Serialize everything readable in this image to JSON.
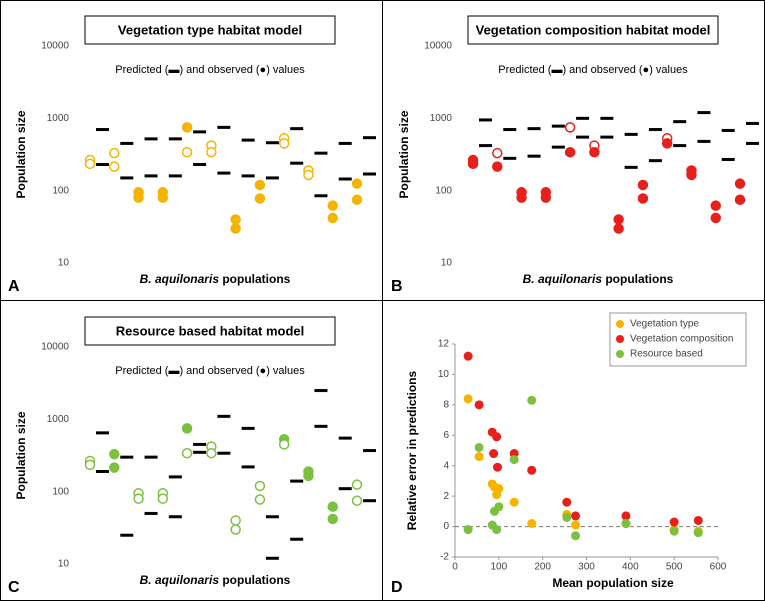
{
  "chart_data": [
    {
      "type": "strip",
      "panel": "A",
      "title": "Vegetation type habitat model",
      "annotation": "Predicted (▬) and observed (●) values",
      "ylabel": "Population size",
      "xlabel": [
        "B. aquilonaris",
        "populations"
      ],
      "log_scale": true,
      "ylim": [
        10,
        10000
      ],
      "yticks": [
        10,
        100,
        1000,
        10000
      ],
      "categories": [
        null,
        null,
        null,
        null,
        null,
        null,
        null,
        null,
        null,
        null,
        null,
        null
      ],
      "series": [
        {
          "marker": "dash",
          "color": "#000000",
          "values": [
            700,
            450,
            520,
            520,
            650,
            750,
            500,
            460,
            720,
            330,
            450,
            540
          ]
        },
        {
          "marker": "dash",
          "color": "#000000",
          "values": [
            230,
            150,
            160,
            160,
            230,
            175,
            160,
            150,
            240,
            85,
            145,
            170
          ]
        },
        {
          "marker": "circle",
          "color": "#f5b400",
          "values": [
            265,
            330,
            95,
            95,
            750,
            420,
            40,
            120,
            530,
            190,
            62,
            125
          ],
          "filled": [
            false,
            false,
            true,
            true,
            true,
            false,
            true,
            true,
            false,
            false,
            true,
            true
          ]
        },
        {
          "marker": "circle",
          "color": "#f5b400",
          "values": [
            235,
            215,
            80,
            80,
            340,
            340,
            30,
            78,
            450,
            165,
            42,
            75
          ],
          "filled": [
            false,
            false,
            true,
            true,
            false,
            false,
            true,
            true,
            false,
            false,
            true,
            true
          ]
        }
      ]
    },
    {
      "type": "strip",
      "panel": "B",
      "title": "Vegetation composition habitat model",
      "annotation": "Predicted (▬) and observed (●) values",
      "ylabel": "Population size",
      "xlabel": [
        "B. aquilonaris",
        "populations"
      ],
      "log_scale": true,
      "ylim": [
        10,
        10000
      ],
      "yticks": [
        10,
        100,
        1000,
        10000
      ],
      "categories": [
        null,
        null,
        null,
        null,
        null,
        null,
        null,
        null,
        null,
        null,
        null,
        null
      ],
      "series": [
        {
          "marker": "dash",
          "color": "#000000",
          "values": [
            950,
            700,
            720,
            780,
            1000,
            1000,
            600,
            700,
            900,
            1200,
            680,
            850
          ]
        },
        {
          "marker": "dash",
          "color": "#000000",
          "values": [
            420,
            280,
            300,
            400,
            550,
            550,
            210,
            260,
            420,
            480,
            270,
            450
          ]
        },
        {
          "marker": "circle",
          "color": "#e8201c",
          "values": [
            265,
            330,
            95,
            95,
            750,
            420,
            40,
            120,
            530,
            190,
            62,
            125
          ],
          "filled": [
            true,
            false,
            true,
            true,
            false,
            false,
            true,
            true,
            false,
            true,
            true,
            true
          ]
        },
        {
          "marker": "circle",
          "color": "#e8201c",
          "values": [
            235,
            215,
            80,
            80,
            340,
            340,
            30,
            78,
            450,
            165,
            42,
            75
          ],
          "filled": [
            true,
            true,
            true,
            true,
            true,
            true,
            true,
            true,
            true,
            true,
            true,
            true
          ]
        }
      ]
    },
    {
      "type": "strip",
      "panel": "C",
      "title": "Resource based habitat model",
      "annotation": "Predicted (▬) and observed (●) values",
      "ylabel": "Population size",
      "xlabel": [
        "B. aquilonaris",
        "populations"
      ],
      "log_scale": true,
      "ylim": [
        10,
        10000
      ],
      "yticks": [
        10,
        100,
        1000,
        10000
      ],
      "categories": [
        null,
        null,
        null,
        null,
        null,
        null,
        null,
        null,
        null,
        null,
        null,
        null
      ],
      "series": [
        {
          "marker": "dash",
          "color": "#000000",
          "values": [
            650,
            300,
            300,
            160,
            450,
            1100,
            750,
            45,
            140,
            2500,
            550,
            370
          ]
        },
        {
          "marker": "dash",
          "color": "#000000",
          "values": [
            190,
            25,
            50,
            45,
            350,
            340,
            220,
            12,
            22,
            800,
            110,
            75
          ]
        },
        {
          "marker": "circle",
          "color": "#7cc040",
          "values": [
            265,
            330,
            95,
            95,
            750,
            420,
            40,
            120,
            530,
            190,
            62,
            125
          ],
          "filled": [
            false,
            true,
            false,
            false,
            true,
            false,
            false,
            false,
            true,
            true,
            true,
            false
          ]
        },
        {
          "marker": "circle",
          "color": "#7cc040",
          "values": [
            235,
            215,
            80,
            80,
            340,
            340,
            30,
            78,
            450,
            165,
            42,
            75
          ],
          "filled": [
            false,
            true,
            false,
            false,
            false,
            false,
            false,
            false,
            false,
            true,
            true,
            false
          ]
        }
      ]
    },
    {
      "type": "scatter",
      "panel": "D",
      "ylabel": "Relative error in predictions",
      "xlabel": "Mean population size",
      "xlim": [
        0,
        600
      ],
      "xticks": [
        0,
        100,
        200,
        300,
        400,
        500,
        600
      ],
      "ylim": [
        -2,
        12
      ],
      "yticks": [
        -2,
        0,
        2,
        4,
        6,
        8,
        10,
        12
      ],
      "reference_line": 0,
      "legend": "top-right",
      "series": [
        {
          "name": "Vegetation type",
          "color": "#f5b400",
          "x": [
            30,
            55,
            85,
            90,
            95,
            100,
            135,
            175,
            255,
            275,
            390,
            500,
            555
          ],
          "values": [
            8.4,
            4.6,
            2.8,
            2.6,
            2.1,
            2.5,
            1.6,
            0.2,
            0.8,
            0.1,
            0.2,
            -0.2,
            -0.3
          ]
        },
        {
          "name": "Vegetation composition",
          "color": "#e8201c",
          "x": [
            30,
            55,
            85,
            95,
            88,
            97,
            135,
            175,
            255,
            275,
            390,
            500,
            555
          ],
          "values": [
            11.2,
            8.0,
            6.2,
            5.9,
            4.8,
            3.9,
            4.8,
            3.7,
            1.6,
            0.7,
            0.7,
            0.3,
            0.4
          ]
        },
        {
          "name": "Resource based",
          "color": "#7cc040",
          "x": [
            30,
            55,
            85,
            90,
            95,
            100,
            135,
            175,
            255,
            275,
            390,
            500,
            555
          ],
          "values": [
            -0.2,
            5.2,
            0.1,
            1.0,
            -0.2,
            1.3,
            4.4,
            8.3,
            0.6,
            -0.6,
            0.2,
            -0.3,
            -0.4
          ]
        }
      ]
    }
  ]
}
